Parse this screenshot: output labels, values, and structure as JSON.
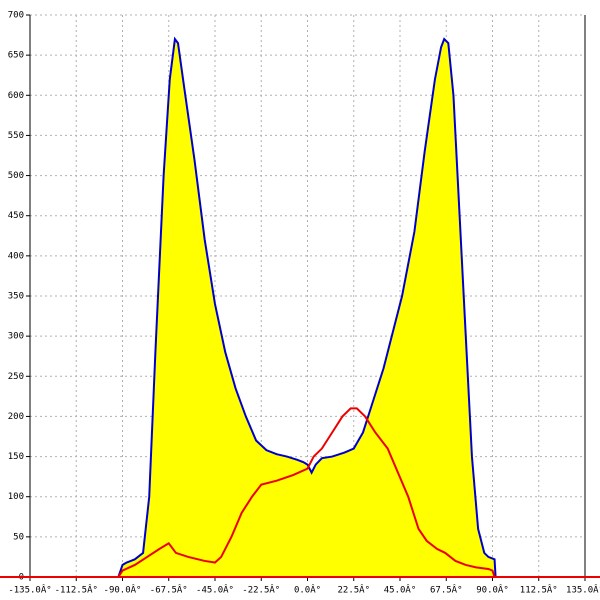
{
  "chart_data": {
    "type": "area",
    "xlim": [
      -135,
      135
    ],
    "ylim": [
      0,
      700
    ],
    "xticks": [
      {
        "value": -135,
        "label": "-135.0Â°"
      },
      {
        "value": -112.5,
        "label": "-112.5Â°"
      },
      {
        "value": -90,
        "label": "-90.0Â°"
      },
      {
        "value": -67.5,
        "label": "-67.5Â°"
      },
      {
        "value": -45,
        "label": "-45.0Â°"
      },
      {
        "value": -22.5,
        "label": "-22.5Â°"
      },
      {
        "value": 0,
        "label": "0.0Â°"
      },
      {
        "value": 22.5,
        "label": "22.5Â°"
      },
      {
        "value": 45,
        "label": "45.0Â°"
      },
      {
        "value": 67.5,
        "label": "67.5Â°"
      },
      {
        "value": 90,
        "label": "90.0Â°"
      },
      {
        "value": 112.5,
        "label": "112.5Â°"
      },
      {
        "value": 135,
        "label": "135.0Â°"
      }
    ],
    "yticks": [
      0,
      50,
      100,
      150,
      200,
      250,
      300,
      350,
      400,
      450,
      500,
      550,
      600,
      650,
      700
    ],
    "grid": true,
    "series": [
      {
        "color": "#0000cc",
        "fill": "#ffff00",
        "x": [
          -92,
          -90,
          -88,
          -84,
          -80,
          -77,
          -74,
          -70,
          -67,
          -64.5,
          -63,
          -60,
          -55,
          -50,
          -45,
          -40,
          -35,
          -30,
          -25,
          -20,
          -15,
          -10,
          -5,
          -2,
          0,
          2,
          4,
          7,
          12,
          18,
          22.5,
          27,
          32,
          37,
          42,
          46,
          52,
          57,
          62,
          65,
          66.5,
          68.5,
          71,
          74,
          77,
          80,
          83,
          86,
          88,
          91,
          91.5
        ],
        "values": [
          0,
          15,
          18,
          22,
          30,
          100,
          280,
          500,
          620,
          670,
          665,
          610,
          520,
          420,
          340,
          280,
          235,
          200,
          170,
          158,
          153,
          150,
          146,
          143,
          140,
          130,
          140,
          148,
          150,
          155,
          160,
          180,
          220,
          260,
          310,
          350,
          430,
          530,
          620,
          660,
          670,
          665,
          600,
          450,
          300,
          150,
          60,
          30,
          25,
          22,
          0
        ]
      },
      {
        "color": "#ee0000",
        "x": [
          -92,
          -90,
          -84,
          -78,
          -72,
          -67.5,
          -64,
          -58,
          -50,
          -45,
          -42,
          -37,
          -32,
          -27,
          -22.5,
          -15,
          -7,
          0,
          3,
          7,
          12,
          17,
          21,
          24,
          28,
          33,
          39,
          44,
          49,
          54,
          58,
          63,
          67,
          72,
          77,
          82,
          88,
          90,
          91
        ],
        "values": [
          0,
          8,
          15,
          25,
          35,
          42,
          30,
          25,
          20,
          18,
          25,
          50,
          80,
          100,
          115,
          120,
          127,
          135,
          150,
          160,
          180,
          200,
          210,
          210,
          200,
          180,
          160,
          130,
          100,
          60,
          45,
          35,
          30,
          20,
          15,
          12,
          10,
          8,
          0
        ]
      }
    ]
  }
}
